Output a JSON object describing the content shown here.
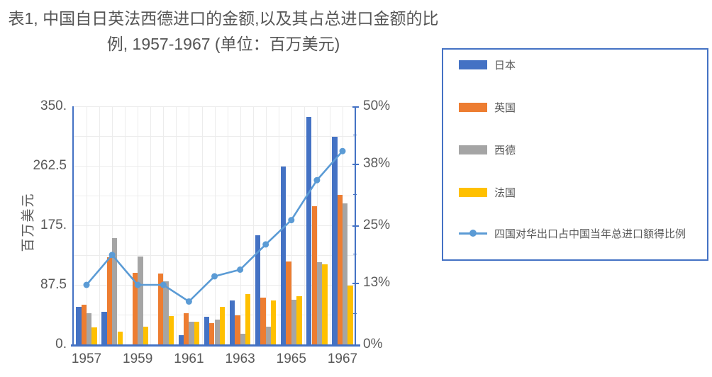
{
  "title": {
    "line1": "表1, 中国自日英法西德进口的金额,以及其占总进口金额的比",
    "line2": "例, 1957-1967 (单位：百万美元)"
  },
  "left_axis": {
    "title": "百万美元",
    "tick_labels": [
      "350.",
      "262.5",
      "175.",
      "87.5",
      "0."
    ],
    "min": 0,
    "max": 350
  },
  "right_axis": {
    "tick_labels": [
      "50%",
      "38%",
      "25%",
      "13%",
      "0%"
    ],
    "tick_values": [
      50,
      38,
      25,
      13,
      0
    ],
    "min": 0,
    "max": 50
  },
  "x_axis": {
    "tick_labels": [
      "1957",
      "1959",
      "1961",
      "1963",
      "1965",
      "1967"
    ]
  },
  "legend": {
    "items": [
      {
        "label": "日本",
        "type": "bar",
        "color": "#4472C4"
      },
      {
        "label": "英国",
        "type": "bar",
        "color": "#ED7D31"
      },
      {
        "label": "西德",
        "type": "bar",
        "color": "#A5A5A5"
      },
      {
        "label": "法国",
        "type": "bar",
        "color": "#FFC000"
      },
      {
        "label": "四国对华出口占中国当年总进口额得比例",
        "type": "line",
        "color": "#5B9BD5"
      }
    ]
  },
  "chart_data": {
    "type": "bar",
    "subtype": "grouped bars with secondary-axis line",
    "title": "表1, 中国自日英法西德进口的金额,以及其占总进口金额的比例, 1957-1967 (单位：百万美元)",
    "xlabel": "",
    "ylabel": "百万美元",
    "ylabel_right": "%",
    "ylim_left": [
      0,
      350
    ],
    "ylim_right": [
      0,
      50
    ],
    "grid": true,
    "legend_position": "right",
    "categories": [
      1957,
      1958,
      1959,
      1960,
      1961,
      1962,
      1963,
      1964,
      1965,
      1966,
      1967
    ],
    "series": [
      {
        "name": "日本",
        "type": "bar",
        "axis": "left",
        "color": "#4472C4",
        "values": [
          55,
          48,
          0,
          0,
          14,
          41,
          65,
          160,
          261,
          334,
          305
        ]
      },
      {
        "name": "英国",
        "type": "bar",
        "axis": "left",
        "color": "#ED7D31",
        "values": [
          58,
          128,
          105,
          104,
          46,
          31,
          43,
          69,
          122,
          203,
          220
        ]
      },
      {
        "name": "西德",
        "type": "bar",
        "axis": "left",
        "color": "#A5A5A5",
        "values": [
          46,
          156,
          129,
          93,
          33,
          37,
          16,
          26,
          66,
          121,
          207
        ]
      },
      {
        "name": "法国",
        "type": "bar",
        "axis": "left",
        "color": "#FFC000",
        "values": [
          25,
          19,
          26,
          42,
          33,
          55,
          74,
          65,
          71,
          118,
          87
        ]
      },
      {
        "name": "四国对华出口占中国当年总进口额得比例",
        "type": "line",
        "axis": "right",
        "color": "#5B9BD5",
        "values": [
          12.5,
          18.8,
          12.5,
          12.5,
          9.0,
          14.3,
          15.7,
          21.0,
          26.1,
          34.5,
          40.6
        ]
      }
    ]
  },
  "colors": {
    "axis_line": "#4472C4",
    "grid_line": "#ECECEC",
    "text": "#595959",
    "legend_border": "#4472C4"
  }
}
